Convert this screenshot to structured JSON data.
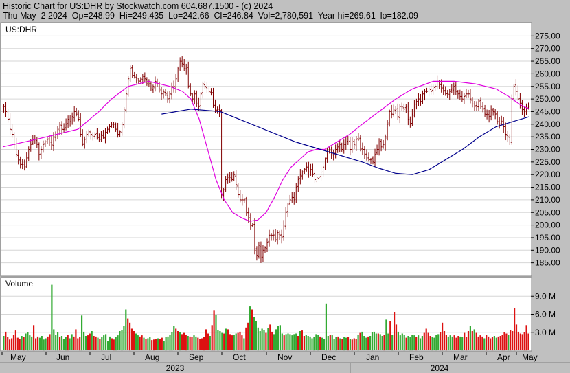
{
  "header": {
    "line1": "Historic Chart for US:DHR by Stockwatch.com 604.687.1500 - (c) 2024",
    "line2": "Thu May  2 2024  Op=248.99  Hi=249.435  Lo=242.66  Cl=246.84  Vol=2,780,591  Year hi=269.61  lo=182.09"
  },
  "chart_data": [
    {
      "type": "ohlc",
      "title": "US:DHR",
      "ylim": [
        180,
        280
      ],
      "y_ticks": [
        "275.00",
        "270.00",
        "265.00",
        "260.00",
        "255.00",
        "250.00",
        "245.00",
        "240.00",
        "235.00",
        "230.00",
        "225.00",
        "220.00",
        "215.00",
        "210.00",
        "205.00",
        "200.00",
        "195.00",
        "190.00",
        "185.00"
      ],
      "x_tick_labels": [
        "May",
        "Jun",
        "Jul",
        "Aug",
        "Sep",
        "Oct",
        "Nov",
        "Dec",
        "Jan",
        "Feb",
        "Mar",
        "Apr",
        "May"
      ],
      "years": [
        "2023",
        "2024"
      ],
      "series": [
        {
          "name": "price",
          "color": "#800000",
          "close": [
            247,
            245,
            242,
            238,
            236,
            232,
            228,
            226,
            224,
            224,
            223,
            227,
            230,
            232,
            234,
            233,
            232,
            228,
            230,
            232,
            233,
            234,
            233,
            232,
            235,
            236,
            238,
            240,
            238,
            238,
            240,
            242,
            241,
            243,
            245,
            244,
            242,
            236,
            232,
            234,
            236,
            237,
            236,
            235,
            236,
            235,
            234,
            236,
            235,
            237,
            238,
            239,
            240,
            240,
            238,
            236,
            237,
            240,
            246,
            252,
            258,
            262,
            260,
            259,
            258,
            257,
            258,
            259,
            258,
            256,
            256,
            254,
            255,
            257,
            256,
            254,
            252,
            253,
            252,
            250,
            252,
            255,
            255,
            258,
            262,
            265,
            264,
            262,
            262,
            255,
            252,
            250,
            252,
            248,
            247,
            252,
            256,
            255,
            254,
            253,
            252,
            248,
            246,
            246,
            245,
            212,
            214,
            218,
            219,
            219,
            218,
            220,
            216,
            212,
            210,
            210,
            210,
            205,
            203,
            200,
            200,
            190,
            188,
            192,
            187,
            190,
            191,
            193,
            196,
            196,
            196,
            194,
            197,
            196,
            195,
            200,
            205,
            208,
            210,
            211,
            210,
            215,
            218,
            220,
            221,
            222,
            223,
            221,
            222,
            220,
            218,
            219,
            219,
            221,
            223,
            226,
            229,
            230,
            228,
            228,
            230,
            231,
            232,
            230,
            232,
            233,
            233,
            230,
            233,
            232,
            234,
            234,
            230,
            230,
            228,
            227,
            226,
            226,
            225,
            228,
            230,
            233,
            231,
            232,
            235,
            240,
            245,
            244,
            246,
            246,
            243,
            247,
            247,
            246,
            247,
            242,
            240,
            244,
            248,
            249,
            250,
            249,
            252,
            253,
            253,
            254,
            253,
            254,
            255,
            257,
            256,
            254,
            253,
            252,
            252,
            253,
            254,
            255,
            253,
            252,
            251,
            250,
            251,
            252,
            252,
            250,
            248,
            247,
            247,
            249,
            247,
            246,
            244,
            244,
            243,
            246,
            245,
            244,
            241,
            240,
            241,
            239,
            236,
            235,
            233,
            250,
            255,
            253,
            250,
            248,
            246,
            245,
            247,
            246.84
          ]
        },
        {
          "name": "ma_short",
          "color": "#e000e0",
          "values": [
            [
              0.0,
              231
            ],
            [
              0.08,
              234
            ],
            [
              0.13,
              236
            ],
            [
              0.18,
              238
            ],
            [
              0.23,
              245
            ],
            [
              0.26,
              250
            ],
            [
              0.3,
              255
            ],
            [
              0.35,
              257
            ],
            [
              0.4,
              255
            ],
            [
              0.43,
              253
            ],
            [
              0.45,
              250
            ],
            [
              0.47,
              242
            ],
            [
              0.49,
              230
            ],
            [
              0.51,
              218
            ],
            [
              0.53,
              210
            ],
            [
              0.55,
              205
            ],
            [
              0.57,
              203
            ],
            [
              0.59,
              201.5
            ],
            [
              0.61,
              202
            ],
            [
              0.63,
              205
            ],
            [
              0.65,
              211
            ],
            [
              0.67,
              218
            ],
            [
              0.69,
              223
            ],
            [
              0.71,
              226
            ],
            [
              0.73,
              229
            ],
            [
              0.75,
              230
            ],
            [
              0.77,
              230
            ],
            [
              0.79,
              232
            ],
            [
              0.81,
              234
            ],
            [
              0.83,
              236
            ],
            [
              0.86,
              240
            ],
            [
              0.9,
              245
            ],
            [
              0.94,
              250
            ],
            [
              0.98,
              254
            ],
            [
              1.03,
              257
            ],
            [
              1.08,
              257
            ],
            [
              1.13,
              256
            ],
            [
              1.18,
              254
            ],
            [
              1.21,
              251
            ],
            [
              1.24,
              247.5
            ],
            [
              1.26,
              246
            ]
          ]
        },
        {
          "name": "ma_long",
          "color": "#00008c",
          "values": [
            [
              0.38,
              244
            ],
            [
              0.45,
              246
            ],
            [
              0.52,
              245
            ],
            [
              0.58,
              241
            ],
            [
              0.64,
              237
            ],
            [
              0.7,
              233
            ],
            [
              0.76,
              230
            ],
            [
              0.82,
              227
            ],
            [
              0.86,
              225
            ],
            [
              0.9,
              222.5
            ],
            [
              0.94,
              220.5
            ],
            [
              0.98,
              220
            ],
            [
              1.02,
              222
            ],
            [
              1.06,
              226
            ],
            [
              1.1,
              230
            ],
            [
              1.14,
              235
            ],
            [
              1.18,
              239
            ],
            [
              1.22,
              241
            ],
            [
              1.26,
              243
            ]
          ]
        }
      ]
    },
    {
      "type": "bar",
      "title": "Volume",
      "ylim": [
        0,
        12
      ],
      "y_ticks": [
        "9.0 M",
        "6.0 M",
        "3.0 M"
      ],
      "series": [
        {
          "name": "volume",
          "values": [
            2.4,
            3.1,
            2.2,
            1.8,
            2.0,
            2.6,
            3.3,
            2.1,
            1.9,
            2.4,
            2.2,
            2.8,
            3.0,
            2.5,
            2.3,
            4.2,
            2.0,
            2.3,
            2.1,
            2.4,
            1.8,
            2.0,
            2.3,
            2.7,
            10.9,
            3.5,
            2.6,
            3.0,
            2.2,
            2.4,
            1.9,
            2.2,
            2.6,
            2.0,
            2.7,
            2.3,
            3.5,
            2.0,
            2.2,
            5.8,
            3.1,
            2.4,
            2.5,
            2.8,
            3.2,
            2.4,
            2.3,
            2.1,
            1.9,
            2.2,
            2.5,
            2.7,
            1.6,
            2.3,
            2.0,
            1.8,
            2.2,
            2.5,
            3.2,
            3.4,
            4.0,
            6.8,
            5.3,
            4.6,
            3.6,
            3.2,
            2.8,
            2.5,
            2.3,
            2.5,
            2.1,
            1.9,
            2.0,
            2.2,
            1.7,
            1.8,
            1.9,
            2.0,
            1.9,
            2.1,
            1.6,
            2.2,
            2.3,
            2.6,
            3.0,
            4.0,
            3.6,
            3.2,
            3.0,
            2.7,
            2.9,
            2.6,
            2.4,
            2.3,
            2.2,
            2.5,
            2.3,
            2.1,
            1.9,
            2.0,
            2.2,
            3.5,
            2.8,
            2.4,
            4.2,
            6.6,
            5.9,
            3.4,
            3.2,
            2.9,
            2.8,
            3.6,
            3.5,
            2.7,
            2.5,
            2.6,
            2.8,
            2.9,
            3.1,
            2.5,
            2.0,
            3.8,
            4.6,
            7.3,
            6.8,
            5.6,
            4.8,
            3.8,
            3.2,
            3.6,
            3.4,
            2.9,
            3.7,
            4.3,
            3.1,
            2.7,
            3.5,
            4.1,
            4.2,
            2.8,
            2.5,
            2.7,
            2.8,
            2.7,
            2.5,
            2.7,
            2.8,
            2.4,
            3.2,
            3.3,
            2.4,
            2.6,
            2.4,
            2.3,
            2.0,
            2.2,
            2.7,
            2.6,
            2.3,
            2.1,
            1.9,
            7.8,
            2.4,
            2.6,
            2.5,
            1.9,
            2.2,
            2.3,
            2.0,
            1.9,
            2.2,
            2.1,
            2.2,
            1.9,
            1.8,
            2.0,
            1.9,
            2.6,
            2.9,
            3.1,
            2.4,
            2.1,
            2.3,
            2.4,
            3.0,
            3.1,
            2.8,
            2.8,
            2.7,
            2.4,
            2.6,
            5.1,
            2.8,
            4.8,
            2.6,
            6.4,
            4.3,
            3.1,
            2.5,
            2.8,
            2.6,
            2.1,
            2.4,
            2.2,
            2.6,
            2.5,
            2.2,
            2.5,
            2.0,
            2.4,
            2.9,
            3.6,
            2.9,
            2.4,
            2.2,
            2.1,
            2.6,
            2.7,
            3.0,
            4.6,
            3.2,
            2.6,
            2.3,
            2.5,
            2.3,
            2.5,
            2.1,
            2.4,
            2.3,
            2.2,
            2.9,
            2.2,
            3.2,
            4.0,
            3.2,
            3.5,
            2.9,
            2.3,
            2.5,
            2.3,
            2.0,
            2.6,
            2.3,
            2.0,
            2.2,
            2.4,
            2.1,
            2.3,
            2.4,
            2.6,
            3.0,
            2.8,
            2.6,
            3.4,
            3.2,
            7.0,
            4.3,
            3.1,
            2.8,
            2.7,
            3.0,
            4.2,
            2.8
          ]
        }
      ]
    }
  ]
}
